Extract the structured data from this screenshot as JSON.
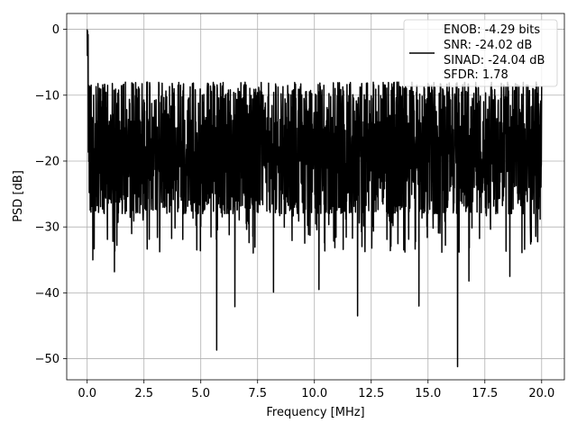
{
  "chart_data": {
    "type": "line",
    "title": "",
    "xlabel": "Frequency [MHz]",
    "ylabel": "PSD [dB]",
    "xlim": [
      -0.9,
      21.0
    ],
    "ylim": [
      -53.2,
      2.4
    ],
    "xticks": [
      0.0,
      2.5,
      5.0,
      7.5,
      10.0,
      12.5,
      15.0,
      17.5,
      20.0
    ],
    "xtick_labels": [
      "0.0",
      "2.5",
      "5.0",
      "7.5",
      "10.0",
      "12.5",
      "15.0",
      "17.5",
      "20.0"
    ],
    "yticks": [
      0,
      -10,
      -20,
      -30,
      -40,
      -50
    ],
    "ytick_labels": [
      "0",
      "−10",
      "−20",
      "−30",
      "−40",
      "−50"
    ],
    "grid": true,
    "legend_position": "top-right",
    "series": [
      {
        "name": "ENOB: -4.29 bits\nSNR: -24.02 dB\nSINAD: -24.04 dB\nSFDR: 1.78",
        "color": "#000000",
        "description": "Noisy power spectral density trace spanning 0 to 20 MHz; envelope roughly -8 dB at top and -28 dB at bottom, with deep dips down to about -51 dB and a peak of 0 dB at DC.",
        "x_range": [
          0.0,
          20.0
        ],
        "peak": {
          "x": 0.0,
          "y": 0.0
        },
        "upper_envelope_approx": -8,
        "lower_envelope_approx": -28,
        "notable_dips": [
          {
            "x": 0.25,
            "y": -35.0
          },
          {
            "x": 1.2,
            "y": -36.8
          },
          {
            "x": 5.7,
            "y": -48.7
          },
          {
            "x": 6.5,
            "y": -42.1
          },
          {
            "x": 8.2,
            "y": -39.9
          },
          {
            "x": 10.2,
            "y": -39.5
          },
          {
            "x": 11.9,
            "y": -43.5
          },
          {
            "x": 14.6,
            "y": -42.0
          },
          {
            "x": 16.3,
            "y": -51.2
          },
          {
            "x": 16.8,
            "y": -38.2
          },
          {
            "x": 18.6,
            "y": -37.5
          }
        ]
      }
    ],
    "legend_lines": [
      "ENOB: -4.29 bits",
      "SNR: -24.02 dB",
      "SINAD: -24.04 dB",
      "SFDR: 1.78"
    ]
  }
}
